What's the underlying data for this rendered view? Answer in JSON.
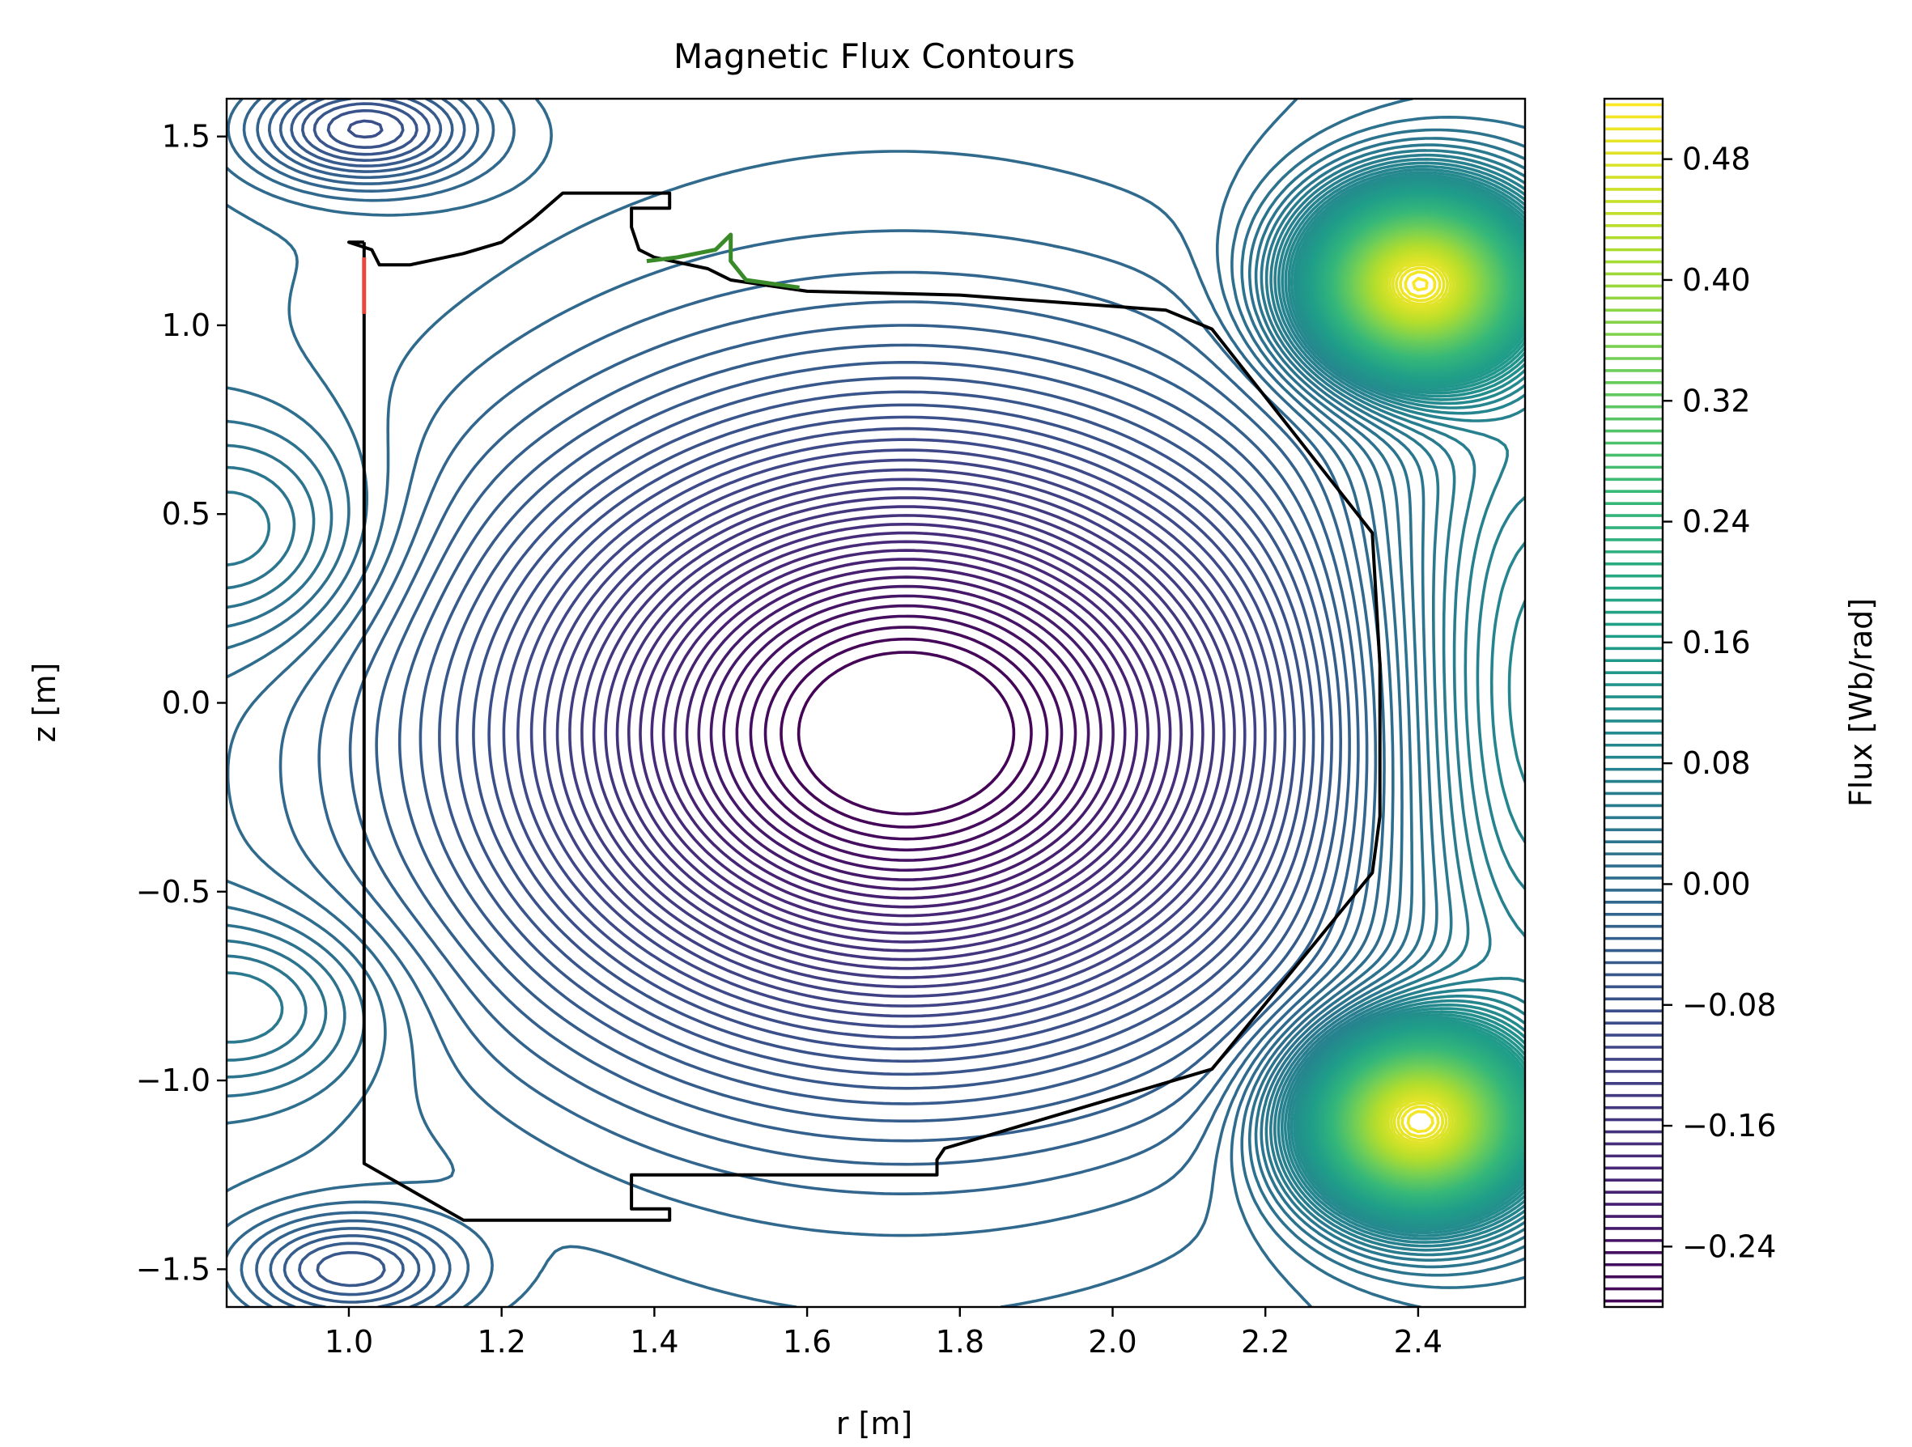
{
  "chart_data": {
    "type": "contour",
    "title": "Magnetic Flux Contours",
    "xlabel": "r [m]",
    "ylabel": "z [m]",
    "colorbar_label": "Flux [Wb/rad]",
    "colormap": "viridis",
    "xlim": [
      0.84,
      2.54
    ],
    "ylim": [
      -1.6,
      1.6
    ],
    "xticks": [
      1.0,
      1.2,
      1.4,
      1.6,
      1.8,
      2.0,
      2.2,
      2.4
    ],
    "xtick_labels": [
      "1.0",
      "1.2",
      "1.4",
      "1.6",
      "1.8",
      "2.0",
      "2.2",
      "2.4"
    ],
    "yticks": [
      -1.5,
      -1.0,
      -0.5,
      0.0,
      0.5,
      1.0,
      1.5
    ],
    "ytick_labels": [
      "−1.5",
      "−1.0",
      "−0.5",
      "0.0",
      "0.5",
      "1.0",
      "1.5"
    ],
    "clim": [
      -0.28,
      0.52
    ],
    "cbar_ticks": [
      -0.24,
      -0.16,
      -0.08,
      0.0,
      0.08,
      0.16,
      0.24,
      0.32,
      0.4,
      0.48
    ],
    "cbar_tick_labels": [
      "−0.24",
      "−0.16",
      "−0.08",
      "0.00",
      "0.08",
      "0.16",
      "0.24",
      "0.32",
      "0.40",
      "0.48"
    ],
    "contour_levels": 100,
    "features": {
      "flux_minimum_axis": [
        1.73,
        -0.08
      ],
      "flux_maxima": [
        [
          2.4,
          1.11
        ],
        [
          2.4,
          -1.11
        ]
      ],
      "x_points": [
        [
          1.4,
          1.18
        ],
        [
          1.06,
          -1.07
        ]
      ]
    },
    "vessel_wall": {
      "color": "#000000",
      "points": [
        [
          1.02,
          1.22
        ],
        [
          1.02,
          1.18
        ],
        [
          1.02,
          -1.22
        ],
        [
          1.15,
          -1.37
        ],
        [
          1.37,
          -1.37
        ],
        [
          1.42,
          -1.37
        ],
        [
          1.42,
          -1.34
        ],
        [
          1.37,
          -1.34
        ],
        [
          1.37,
          -1.25
        ],
        [
          1.77,
          -1.25
        ],
        [
          1.77,
          -1.21
        ],
        [
          1.78,
          -1.18
        ],
        [
          2.13,
          -0.97
        ],
        [
          2.34,
          -0.45
        ],
        [
          2.35,
          -0.3
        ],
        [
          2.35,
          0.1
        ],
        [
          2.34,
          0.45
        ],
        [
          2.13,
          0.99
        ],
        [
          2.07,
          1.04
        ],
        [
          1.8,
          1.08
        ],
        [
          1.6,
          1.09
        ],
        [
          1.5,
          1.12
        ],
        [
          1.47,
          1.15
        ],
        [
          1.4,
          1.18
        ],
        [
          1.38,
          1.2
        ],
        [
          1.37,
          1.26
        ],
        [
          1.37,
          1.31
        ],
        [
          1.42,
          1.31
        ],
        [
          1.42,
          1.35
        ],
        [
          1.28,
          1.35
        ],
        [
          1.24,
          1.28
        ],
        [
          1.2,
          1.22
        ],
        [
          1.15,
          1.19
        ],
        [
          1.08,
          1.16
        ],
        [
          1.04,
          1.16
        ],
        [
          1.03,
          1.2
        ],
        [
          1.0,
          1.22
        ],
        [
          1.02,
          1.22
        ]
      ]
    },
    "highlight_segments": [
      {
        "color": "#e8473b",
        "points": [
          [
            1.02,
            1.18
          ],
          [
            1.02,
            1.03
          ]
        ]
      },
      {
        "color": "#3a8a2a",
        "points": [
          [
            1.39,
            1.17
          ],
          [
            1.43,
            1.18
          ],
          [
            1.48,
            1.2
          ],
          [
            1.5,
            1.24
          ],
          [
            1.5,
            1.17
          ],
          [
            1.52,
            1.12
          ],
          [
            1.59,
            1.1
          ]
        ]
      }
    ]
  }
}
